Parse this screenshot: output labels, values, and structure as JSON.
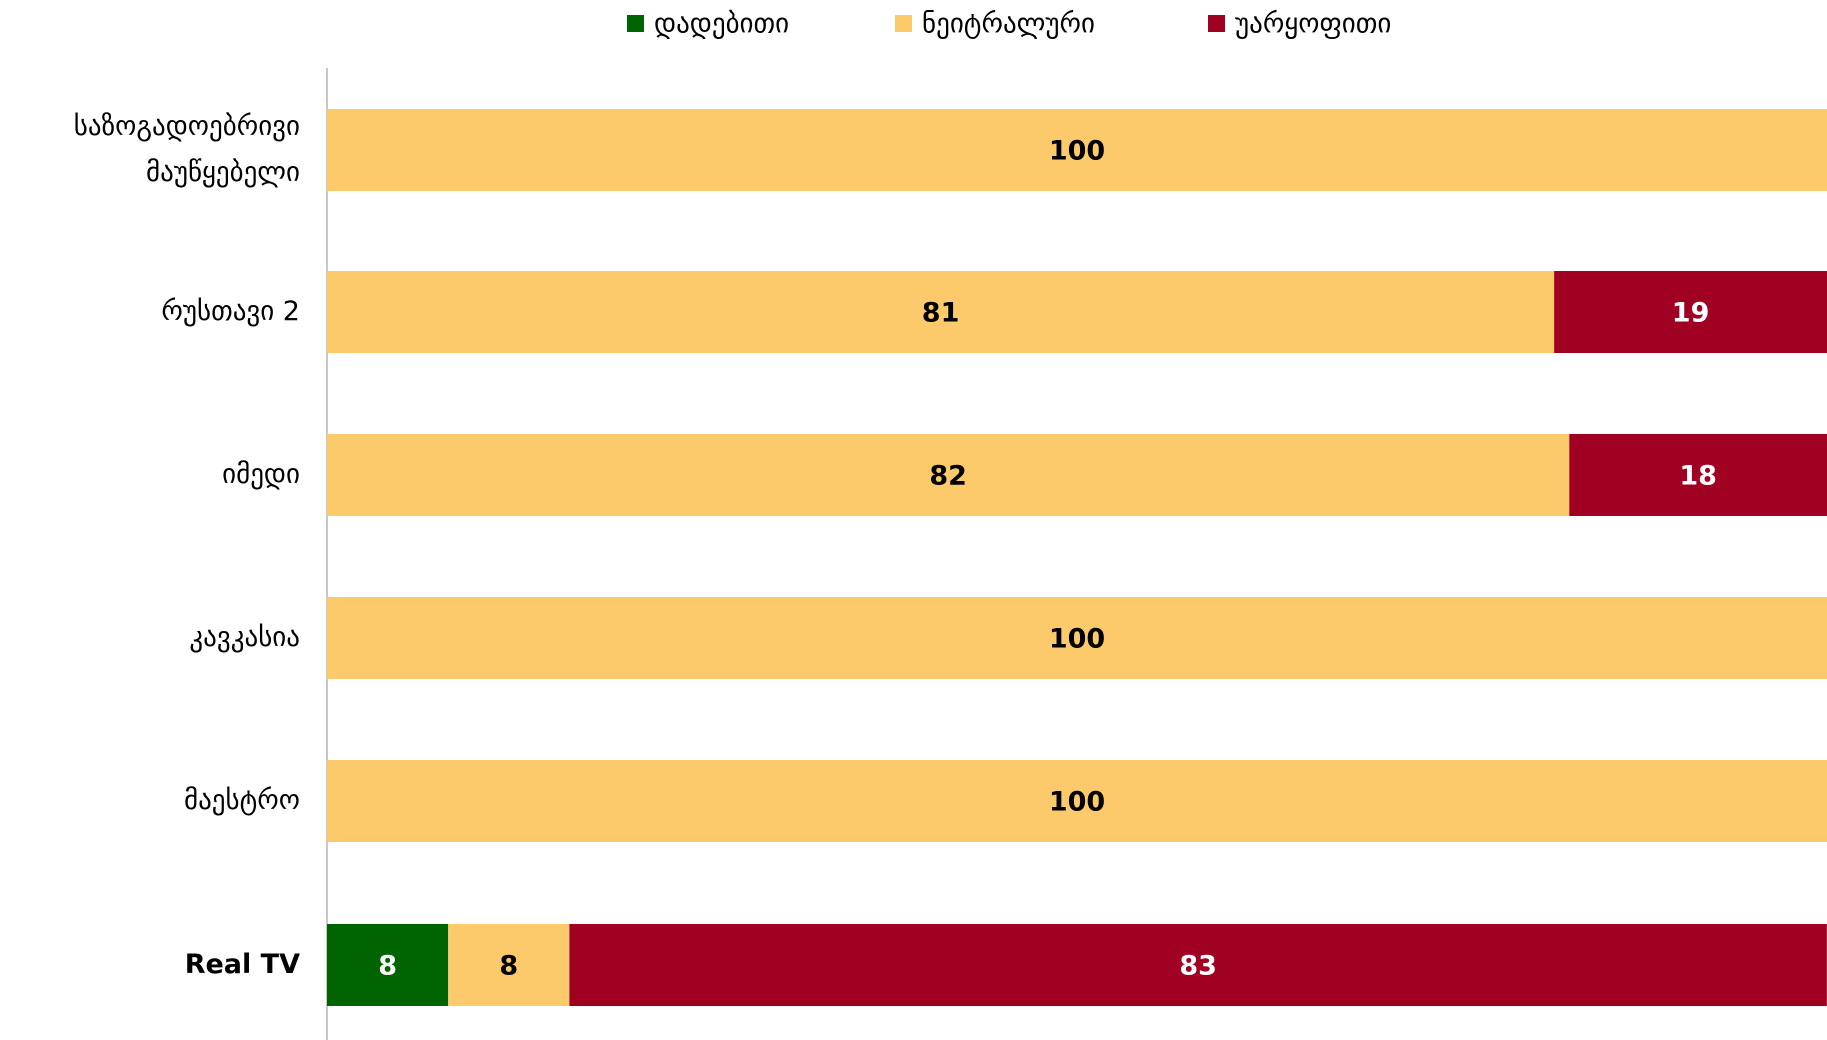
{
  "chart_data": {
    "type": "stacked-bar-horizontal",
    "categories": [
      "საზოგადოებრივი მაუწყებელი",
      "რუსთავი 2",
      "იმედი",
      "კავკასია",
      "მაესტრო",
      "Real TV"
    ],
    "series": [
      {
        "name": "დადებითი",
        "color": "#006400",
        "values": [
          null,
          null,
          null,
          null,
          null,
          8
        ]
      },
      {
        "name": "ნეიტრალური",
        "color": "#fdca6b",
        "values": [
          100,
          81,
          82,
          100,
          100,
          8
        ]
      },
      {
        "name": "უარყოფითი",
        "color": "#a00021",
        "values": [
          null,
          19,
          18,
          null,
          null,
          83
        ]
      }
    ],
    "xlim": [
      0,
      100
    ],
    "legend": "top"
  }
}
